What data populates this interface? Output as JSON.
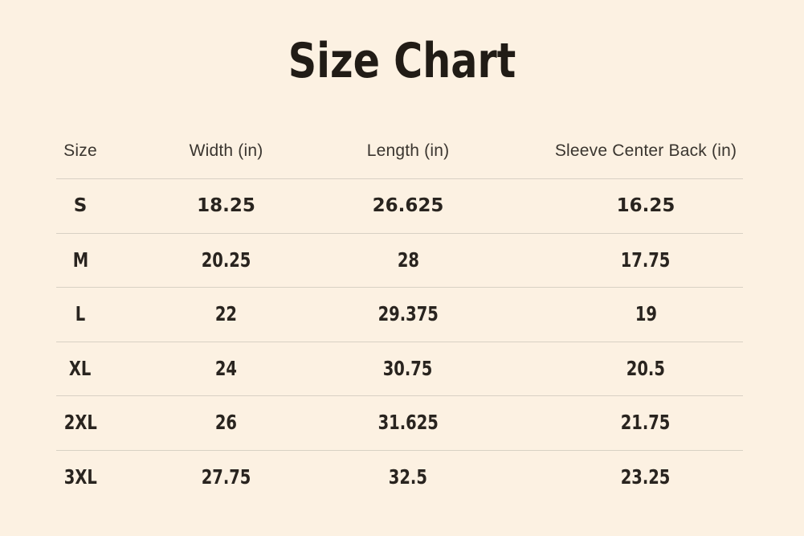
{
  "theme": {
    "background": "#fcf1e2",
    "title_color": "#211c16",
    "header_color": "#3a352f",
    "value_color": "#29241f",
    "divider_color": "#d8d1c4"
  },
  "chart_data": {
    "type": "table",
    "title": "Size Chart",
    "unit": "in",
    "columns": [
      "Size",
      "Width (in)",
      "Length (in)",
      "Sleeve Center Back (in)"
    ],
    "rows": [
      [
        "S",
        "18.25",
        "26.625",
        "16.25"
      ],
      [
        "M",
        "20.25",
        "28",
        "17.75"
      ],
      [
        "L",
        "22",
        "29.375",
        "19"
      ],
      [
        "XL",
        "24",
        "30.75",
        "20.5"
      ],
      [
        "2XL",
        "26",
        "31.625",
        "21.75"
      ],
      [
        "3XL",
        "27.75",
        "32.5",
        "23.25"
      ]
    ]
  }
}
